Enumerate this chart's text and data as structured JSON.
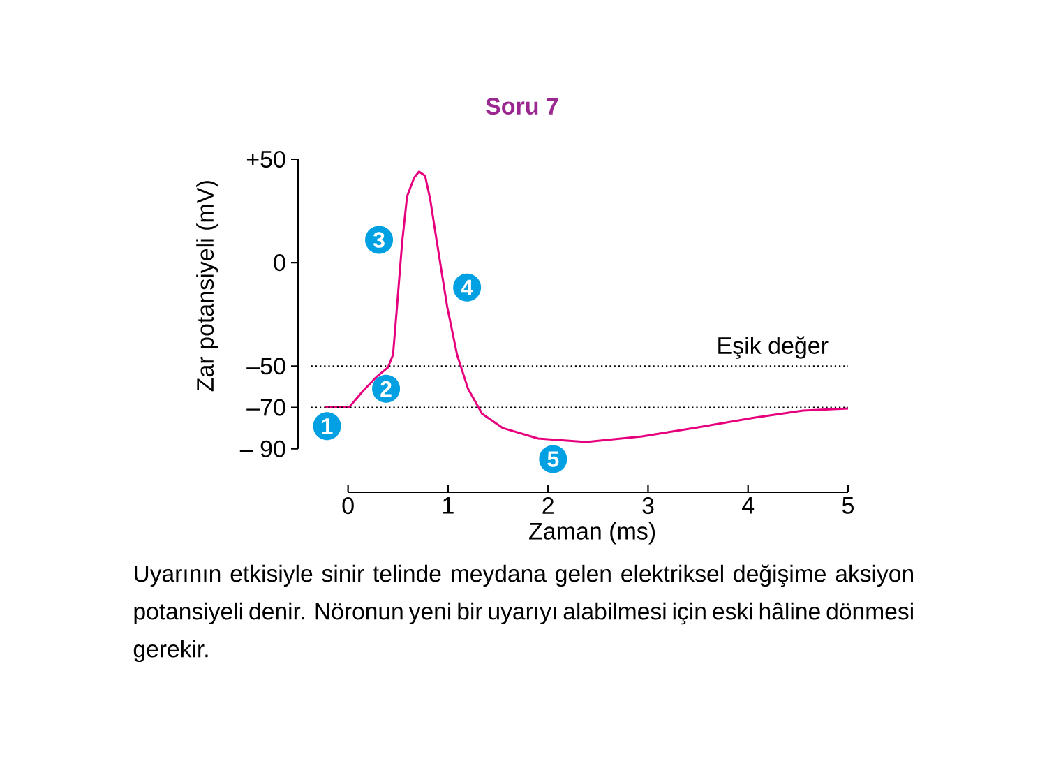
{
  "chart_data": {
    "type": "line",
    "title": "Soru 7",
    "xlabel": "Zaman (ms)",
    "ylabel": "Zar potansiyeli (mV)",
    "xlim": [
      -0.5,
      5
    ],
    "xticks": [
      0,
      1,
      2,
      3,
      4,
      5
    ],
    "ylim": [
      -111,
      50
    ],
    "yticks": [
      {
        "value": -90,
        "label": "– 90"
      },
      {
        "value": -70,
        "label": "–70"
      },
      {
        "value": -50,
        "label": "–50"
      },
      0,
      {
        "value": 50,
        "label": "+50"
      }
    ],
    "series": [
      {
        "color": "#e6007e",
        "x": [
          -0.23,
          0.01,
          0.15,
          0.29,
          0.4,
          0.45,
          0.49,
          0.54,
          0.59,
          0.66,
          0.71,
          0.77,
          0.82,
          0.89,
          0.99,
          1.09,
          1.2,
          1.34,
          1.55,
          1.9,
          2.38,
          2.94,
          3.5,
          4.06,
          4.55,
          5.0
        ],
        "values": [
          -70,
          -70,
          -62,
          -55,
          -50.6,
          -44.5,
          -21,
          9.4,
          32,
          41,
          44,
          42,
          31,
          9.4,
          -21,
          -44.5,
          -61,
          -73,
          -80,
          -85,
          -86.7,
          -84,
          -79.6,
          -75,
          -71.5,
          -70.5
        ]
      }
    ],
    "ref_lines": [
      {
        "axis": "y",
        "value": -50,
        "label": "Eşik değer",
        "line_style": "dotted"
      },
      {
        "axis": "y",
        "value": -70,
        "line_style": "dotted"
      }
    ],
    "annotations": [
      {
        "text": "1",
        "x": -0.21,
        "y": -79
      },
      {
        "text": "2",
        "x": 0.38,
        "y": -61
      },
      {
        "text": "3",
        "x": 0.31,
        "y": 11
      },
      {
        "text": "4",
        "x": 1.19,
        "y": -12
      },
      {
        "text": "5",
        "x": 2.05,
        "y": -95
      },
      "Uyarının etkisiyle sinir telinde meydana gelen elektriksel değişime aksiyon potansiyeli denir. Nöronun yeni bir uyarıyı alabilmesi için eski hâline dönmesi gerekir."
    ],
    "grid": false
  }
}
